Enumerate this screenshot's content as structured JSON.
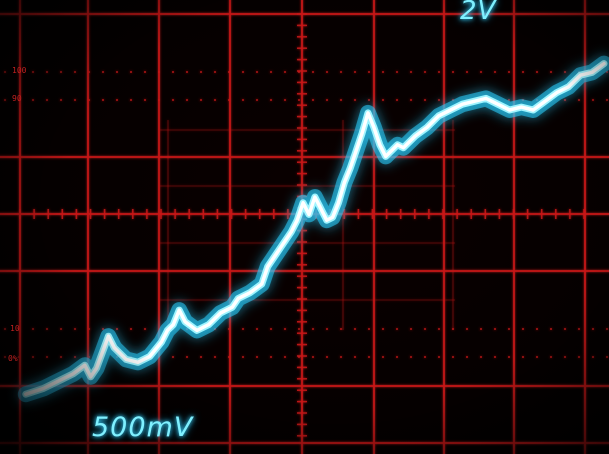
{
  "scope": {
    "channel_scale_upper": "2V",
    "channel_scale_lower": "500mV",
    "graticule_labels": [
      "100",
      "90",
      "10",
      "0%"
    ],
    "colors": {
      "grid": "#c81818",
      "trace": "#ffffff",
      "trace_glow": "#2ad0ff",
      "readout": "#7ff0ff"
    },
    "trace": [
      [
        0.02,
        0.02
      ],
      [
        0.05,
        0.04
      ],
      [
        0.08,
        0.07
      ],
      [
        0.1,
        0.09
      ],
      [
        0.12,
        0.12
      ],
      [
        0.13,
        0.08
      ],
      [
        0.14,
        0.11
      ],
      [
        0.16,
        0.22
      ],
      [
        0.17,
        0.18
      ],
      [
        0.19,
        0.14
      ],
      [
        0.21,
        0.13
      ],
      [
        0.23,
        0.15
      ],
      [
        0.25,
        0.2
      ],
      [
        0.26,
        0.24
      ],
      [
        0.27,
        0.26
      ],
      [
        0.28,
        0.31
      ],
      [
        0.29,
        0.27
      ],
      [
        0.31,
        0.24
      ],
      [
        0.33,
        0.26
      ],
      [
        0.35,
        0.3
      ],
      [
        0.37,
        0.32
      ],
      [
        0.38,
        0.35
      ],
      [
        0.4,
        0.37
      ],
      [
        0.42,
        0.4
      ],
      [
        0.43,
        0.46
      ],
      [
        0.45,
        0.52
      ],
      [
        0.47,
        0.58
      ],
      [
        0.48,
        0.62
      ],
      [
        0.49,
        0.68
      ],
      [
        0.5,
        0.64
      ],
      [
        0.51,
        0.7
      ],
      [
        0.52,
        0.66
      ],
      [
        0.53,
        0.62
      ],
      [
        0.54,
        0.63
      ],
      [
        0.55,
        0.68
      ],
      [
        0.56,
        0.75
      ],
      [
        0.57,
        0.8
      ],
      [
        0.58,
        0.86
      ],
      [
        0.59,
        0.92
      ],
      [
        0.6,
        0.99
      ],
      [
        0.61,
        0.94
      ],
      [
        0.62,
        0.88
      ],
      [
        0.63,
        0.84
      ],
      [
        0.64,
        0.86
      ],
      [
        0.65,
        0.88
      ],
      [
        0.66,
        0.87
      ],
      [
        0.68,
        0.91
      ],
      [
        0.7,
        0.94
      ],
      [
        0.72,
        0.98
      ],
      [
        0.74,
        1.0
      ],
      [
        0.76,
        1.02
      ],
      [
        0.78,
        1.03
      ],
      [
        0.8,
        1.04
      ],
      [
        0.82,
        1.02
      ],
      [
        0.84,
        1.0
      ],
      [
        0.86,
        1.01
      ],
      [
        0.88,
        1.0
      ],
      [
        0.9,
        1.03
      ],
      [
        0.92,
        1.06
      ],
      [
        0.94,
        1.08
      ],
      [
        0.96,
        1.12
      ],
      [
        0.98,
        1.13
      ],
      [
        1.0,
        1.16
      ]
    ]
  }
}
